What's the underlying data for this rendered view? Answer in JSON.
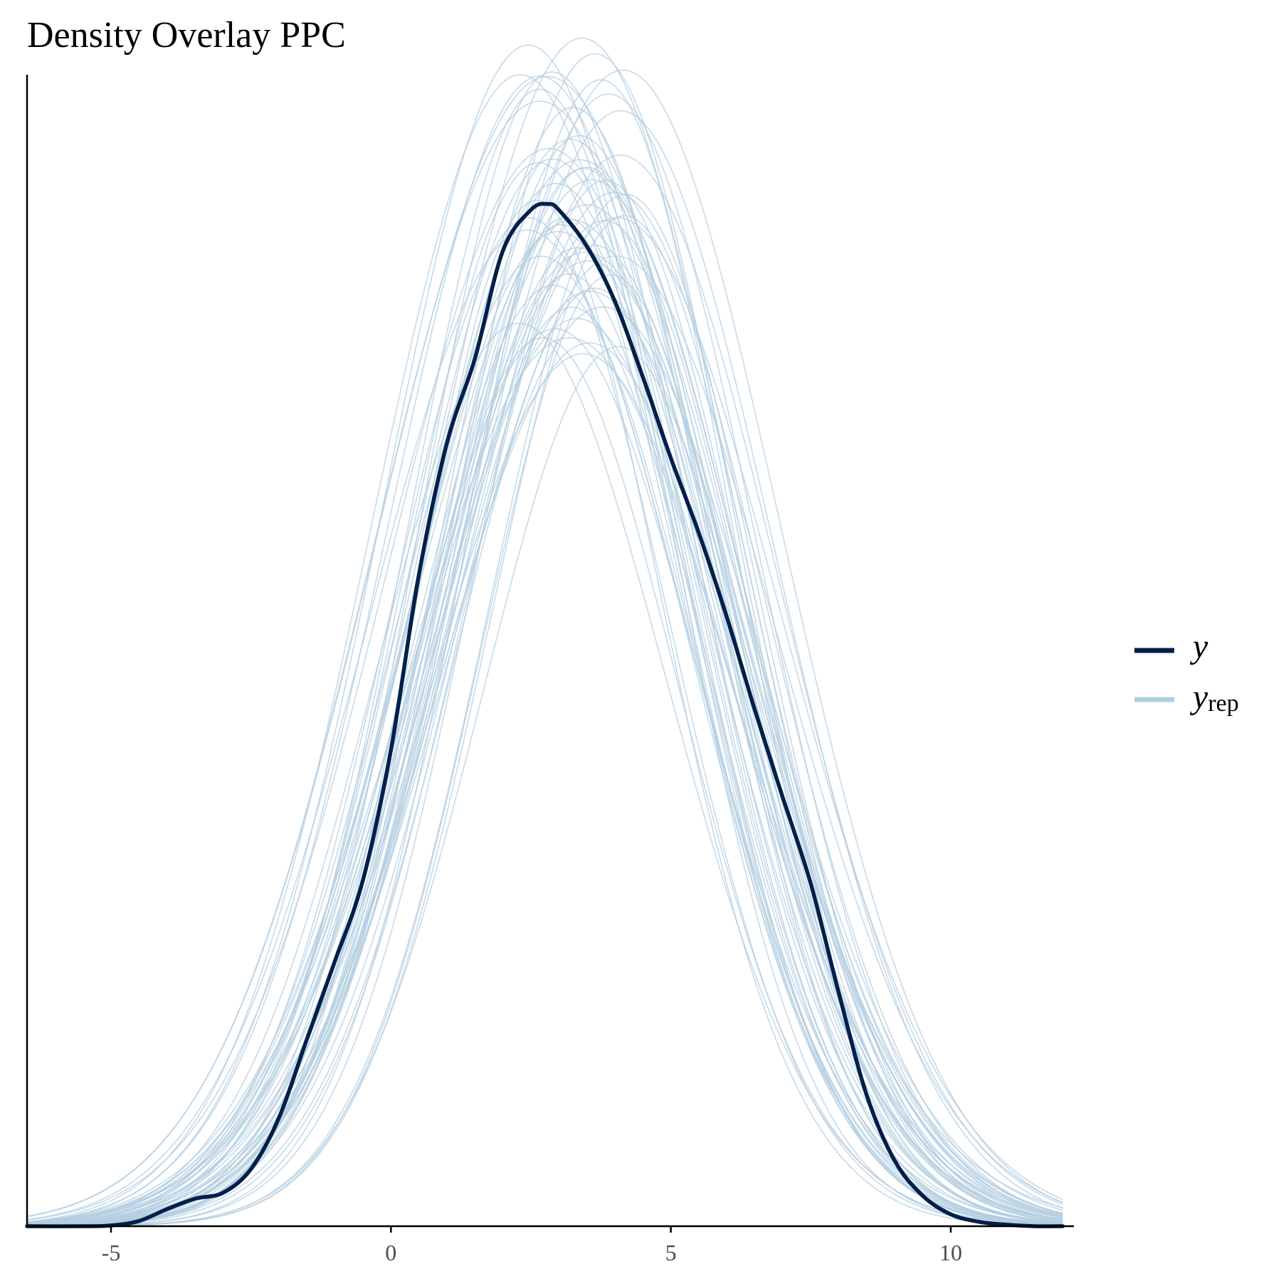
{
  "chart_data": {
    "type": "line",
    "title": "Density Overlay PPC",
    "xlabel": "",
    "ylabel": "",
    "xlim": [
      -6.5,
      12.2
    ],
    "ylim": [
      0,
      0.155
    ],
    "x_ticks": [
      -5,
      0,
      5,
      10
    ],
    "x_tick_labels": [
      "-5",
      "0",
      "5",
      "10"
    ],
    "y_axis_ticks_shown": false,
    "grid": false,
    "legend": {
      "placement": "right",
      "entries": [
        {
          "main": "y",
          "sub": ""
        },
        {
          "main": "y",
          "sub": "rep"
        }
      ]
    },
    "colors": {
      "y": "#011f4b",
      "yrep": "#b3cde0",
      "axis": "#000000"
    },
    "series": [
      {
        "name": "y",
        "role": "observed",
        "x": [
          -6.5,
          -5.5,
          -5.0,
          -4.5,
          -4.0,
          -3.5,
          -3.0,
          -2.5,
          -2.0,
          -1.5,
          -1.0,
          -0.5,
          0.0,
          0.5,
          1.0,
          1.5,
          2.0,
          2.5,
          2.8,
          3.0,
          3.5,
          4.0,
          4.5,
          5.0,
          5.5,
          6.0,
          6.5,
          7.0,
          7.5,
          8.0,
          8.5,
          9.0,
          9.5,
          10.0,
          10.5,
          11.0,
          11.5,
          12.0
        ],
        "values": [
          0.0,
          0.0,
          0.0001,
          0.0007,
          0.0023,
          0.0037,
          0.0045,
          0.0077,
          0.0146,
          0.0252,
          0.0357,
          0.0466,
          0.0641,
          0.0877,
          0.1054,
          0.1168,
          0.1313,
          0.1368,
          0.1376,
          0.1368,
          0.1319,
          0.1245,
          0.1143,
          0.1034,
          0.0933,
          0.082,
          0.0695,
          0.0577,
          0.0461,
          0.0314,
          0.0176,
          0.0088,
          0.0041,
          0.0016,
          0.0006,
          0.0002,
          0.0,
          0.0
        ]
      }
    ],
    "yrep_shape": {
      "n_draws": 60,
      "peak_location_range": [
        2.4,
        4.2
      ],
      "peak_height_range": [
        0.118,
        0.16
      ],
      "sd_range": [
        2.35,
        2.95
      ],
      "lower_tail_start": -6.5,
      "upper_tail_end": 12.0
    }
  }
}
